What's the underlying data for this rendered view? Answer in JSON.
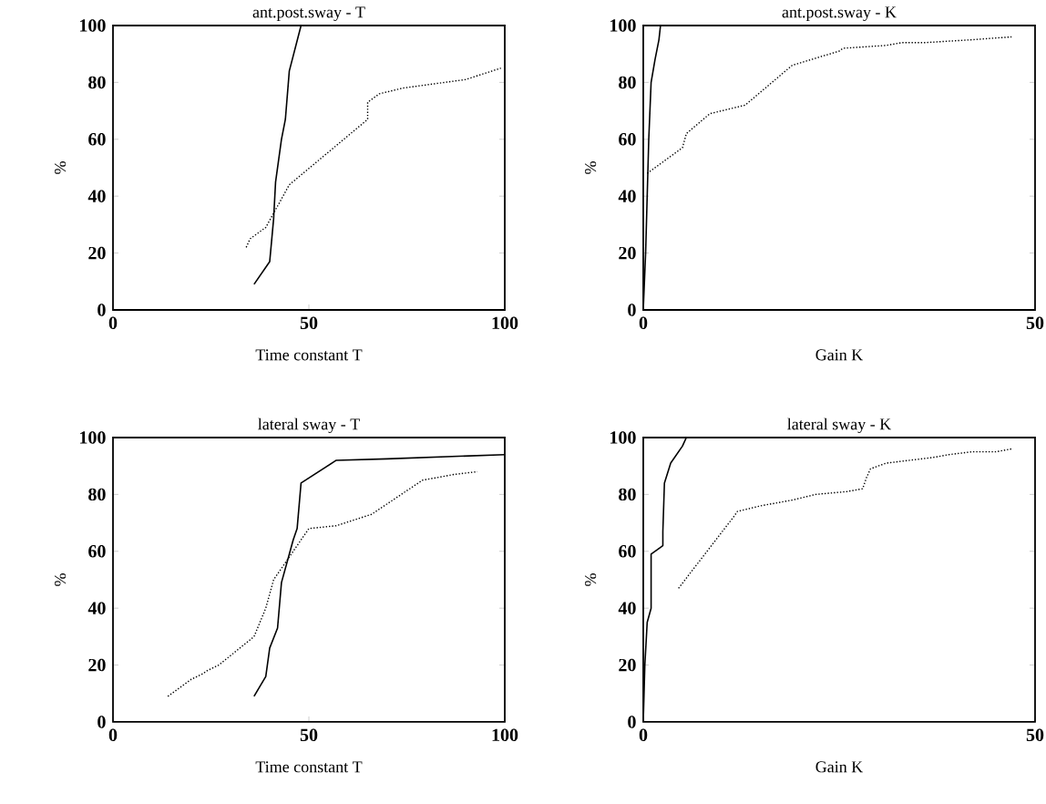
{
  "chart_data": [
    {
      "type": "line",
      "title": "ant.post.sway  - T",
      "xlabel": "Time constant T",
      "ylabel": "%",
      "xlim": [
        0,
        100
      ],
      "ylim": [
        0,
        100
      ],
      "xticks": [
        0,
        50,
        100
      ],
      "yticks": [
        0,
        20,
        40,
        60,
        80,
        100
      ],
      "series": [
        {
          "color": "#000000",
          "line_style": "solid",
          "x": [
            36,
            40,
            41,
            41.5,
            43,
            44,
            45,
            48
          ],
          "values": [
            9,
            17,
            32,
            45,
            60,
            67,
            84,
            100
          ]
        },
        {
          "color": "#000000",
          "line_style": "dotted",
          "x": [
            34,
            35,
            39,
            45,
            65,
            65,
            68,
            74,
            90,
            99
          ],
          "values": [
            22,
            25,
            29,
            44,
            67,
            73,
            76,
            78,
            81,
            85
          ]
        }
      ]
    },
    {
      "type": "line",
      "title": "ant.post.sway - K",
      "xlabel": "Gain K",
      "ylabel": "%",
      "xlim": [
        0,
        50
      ],
      "ylim": [
        0,
        100
      ],
      "xticks": [
        0,
        50
      ],
      "yticks": [
        0,
        20,
        40,
        60,
        80,
        100
      ],
      "series": [
        {
          "color": "#000000",
          "line_style": "solid",
          "x": [
            0,
            0.3,
            0.5,
            0.7,
            1,
            1.5,
            2,
            2.2
          ],
          "values": [
            0,
            20,
            40,
            60,
            80,
            88,
            95,
            100
          ]
        },
        {
          "color": "#000000",
          "line_style": "dotted",
          "x": [
            0.5,
            2.5,
            5,
            5.5,
            8.5,
            13,
            19,
            25,
            25.5,
            31,
            33,
            36,
            42,
            47
          ],
          "values": [
            48,
            52,
            57,
            62,
            69,
            72,
            86,
            91,
            92,
            93,
            94,
            94,
            95,
            96
          ]
        }
      ]
    },
    {
      "type": "line",
      "title": "lateral sway - T",
      "xlabel": "Time constant T",
      "ylabel": "%",
      "xlim": [
        0,
        100
      ],
      "ylim": [
        0,
        100
      ],
      "xticks": [
        0,
        50,
        100
      ],
      "yticks": [
        0,
        20,
        40,
        60,
        80,
        100
      ],
      "series": [
        {
          "color": "#000000",
          "line_style": "solid",
          "x": [
            36,
            39,
            40,
            42,
            43,
            46,
            47,
            48,
            57,
            70,
            100
          ],
          "values": [
            9,
            16,
            26,
            33,
            49,
            64,
            68,
            84,
            92,
            92.5,
            94
          ]
        },
        {
          "color": "#000000",
          "line_style": "dotted",
          "x": [
            14,
            20,
            23,
            24,
            27,
            36,
            39,
            41,
            50,
            57,
            66,
            79,
            87,
            93
          ],
          "values": [
            9,
            15,
            17,
            18,
            20,
            30,
            40,
            50,
            68,
            69,
            73,
            85,
            87,
            88
          ]
        }
      ]
    },
    {
      "type": "line",
      "title": "lateral sway - K",
      "xlabel": "Gain K",
      "ylabel": "%",
      "xlim": [
        0,
        50
      ],
      "ylim": [
        0,
        100
      ],
      "xticks": [
        0,
        50
      ],
      "yticks": [
        0,
        20,
        40,
        60,
        80,
        100
      ],
      "series": [
        {
          "color": "#000000",
          "line_style": "solid",
          "x": [
            0,
            0.2,
            0.5,
            1,
            1,
            2.5,
            2.5,
            2.7,
            3.5,
            5,
            5.5
          ],
          "values": [
            0,
            20,
            35,
            40,
            59,
            62,
            67,
            84,
            91,
            97,
            100
          ]
        },
        {
          "color": "#000000",
          "line_style": "dotted",
          "x": [
            4.5,
            11.5,
            12,
            15,
            19,
            22,
            26,
            28,
            28.5,
            29,
            31,
            37,
            39,
            42,
            45,
            47
          ],
          "values": [
            47,
            72,
            74,
            76,
            78,
            80,
            81,
            82,
            86,
            89,
            91,
            93,
            94,
            95,
            95,
            96
          ]
        }
      ]
    }
  ]
}
